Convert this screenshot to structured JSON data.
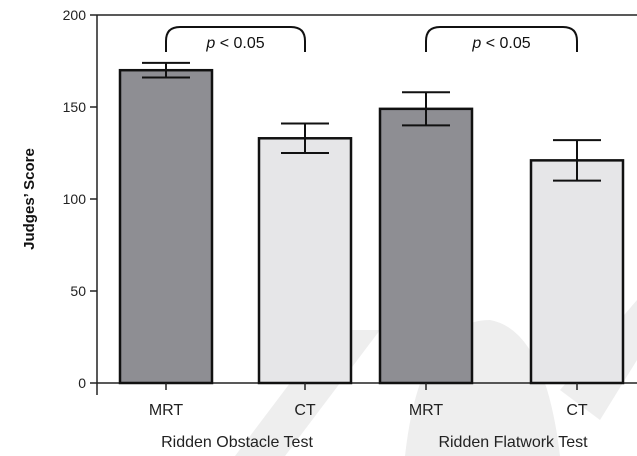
{
  "chart_data": {
    "type": "bar",
    "ylabel": "Judges’ Score",
    "ylim": [
      0,
      200
    ],
    "yticks": [
      0,
      50,
      100,
      150,
      200
    ],
    "groups": [
      {
        "label": "Ridden Obstacle Test",
        "bars": [
          {
            "category": "MRT",
            "value": 170,
            "error": 4,
            "color": "#8e8e93"
          },
          {
            "category": "CT",
            "value": 133,
            "error": 8,
            "color": "#e6e6e8"
          }
        ],
        "annotation": {
          "p": "p",
          "rest": " < 0.05"
        }
      },
      {
        "label": "Ridden Flatwork Test",
        "bars": [
          {
            "category": "MRT",
            "value": 149,
            "error": 9,
            "color": "#8e8e93"
          },
          {
            "category": "CT",
            "value": 121,
            "error": 11,
            "color": "#e6e6e8"
          }
        ],
        "annotation": {
          "p": "p",
          "rest": " < 0.05"
        }
      }
    ],
    "watermark": {
      "color": "#eeeeee"
    }
  }
}
